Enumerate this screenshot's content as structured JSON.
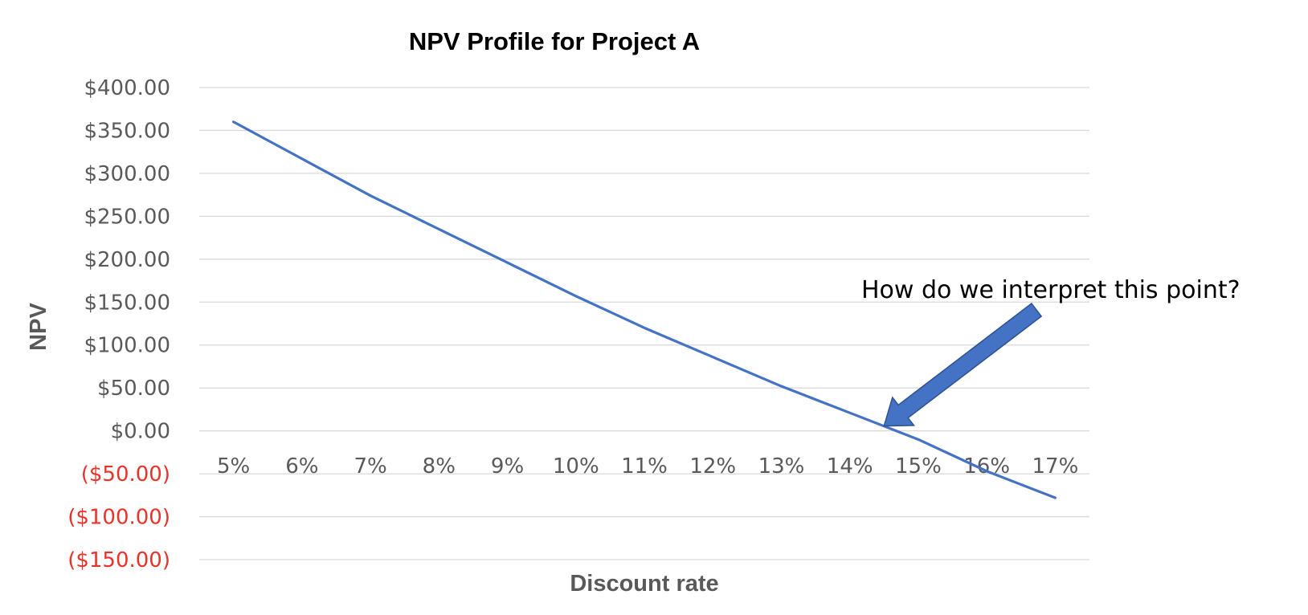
{
  "chart_data": {
    "type": "line",
    "title": "NPV Profile for Project A",
    "xlabel": "Discount rate",
    "ylabel": "NPV",
    "categories": [
      "5%",
      "6%",
      "7%",
      "8%",
      "9%",
      "10%",
      "11%",
      "12%",
      "13%",
      "14%",
      "15%",
      "16%",
      "17%"
    ],
    "series": [
      {
        "values": [
          360,
          317,
          274,
          235,
          196,
          157,
          120,
          86,
          52,
          21,
          -10,
          -47,
          -78
        ]
      }
    ],
    "ylim": [
      -150,
      400
    ],
    "y_ticks": [
      {
        "value": 400,
        "label": "$400.00"
      },
      {
        "value": 350,
        "label": "$350.00"
      },
      {
        "value": 300,
        "label": "$300.00"
      },
      {
        "value": 250,
        "label": "$250.00"
      },
      {
        "value": 200,
        "label": "$200.00"
      },
      {
        "value": 150,
        "label": "$150.00"
      },
      {
        "value": 100,
        "label": "$100.00"
      },
      {
        "value": 50,
        "label": "$50.00"
      },
      {
        "value": 0,
        "label": "$0.00"
      },
      {
        "value": -50,
        "label": "($50.00)"
      },
      {
        "value": -100,
        "label": "($100.00)"
      },
      {
        "value": -150,
        "label": "($150.00)"
      }
    ],
    "x_tick_labels_at_y": -50,
    "grid": true,
    "legend": "none",
    "annotations": [
      {
        "text": "How do we interpret this point?",
        "points_to": {
          "x": 14.5,
          "y": 0
        }
      }
    ]
  },
  "colors": {
    "line": "#4472c4",
    "arrow": "#4472c4",
    "arrow_edge": "#2f528f",
    "positive_tick": "#595959",
    "negative_tick": "#e8332a",
    "gridline": "#d9d9d9"
  }
}
